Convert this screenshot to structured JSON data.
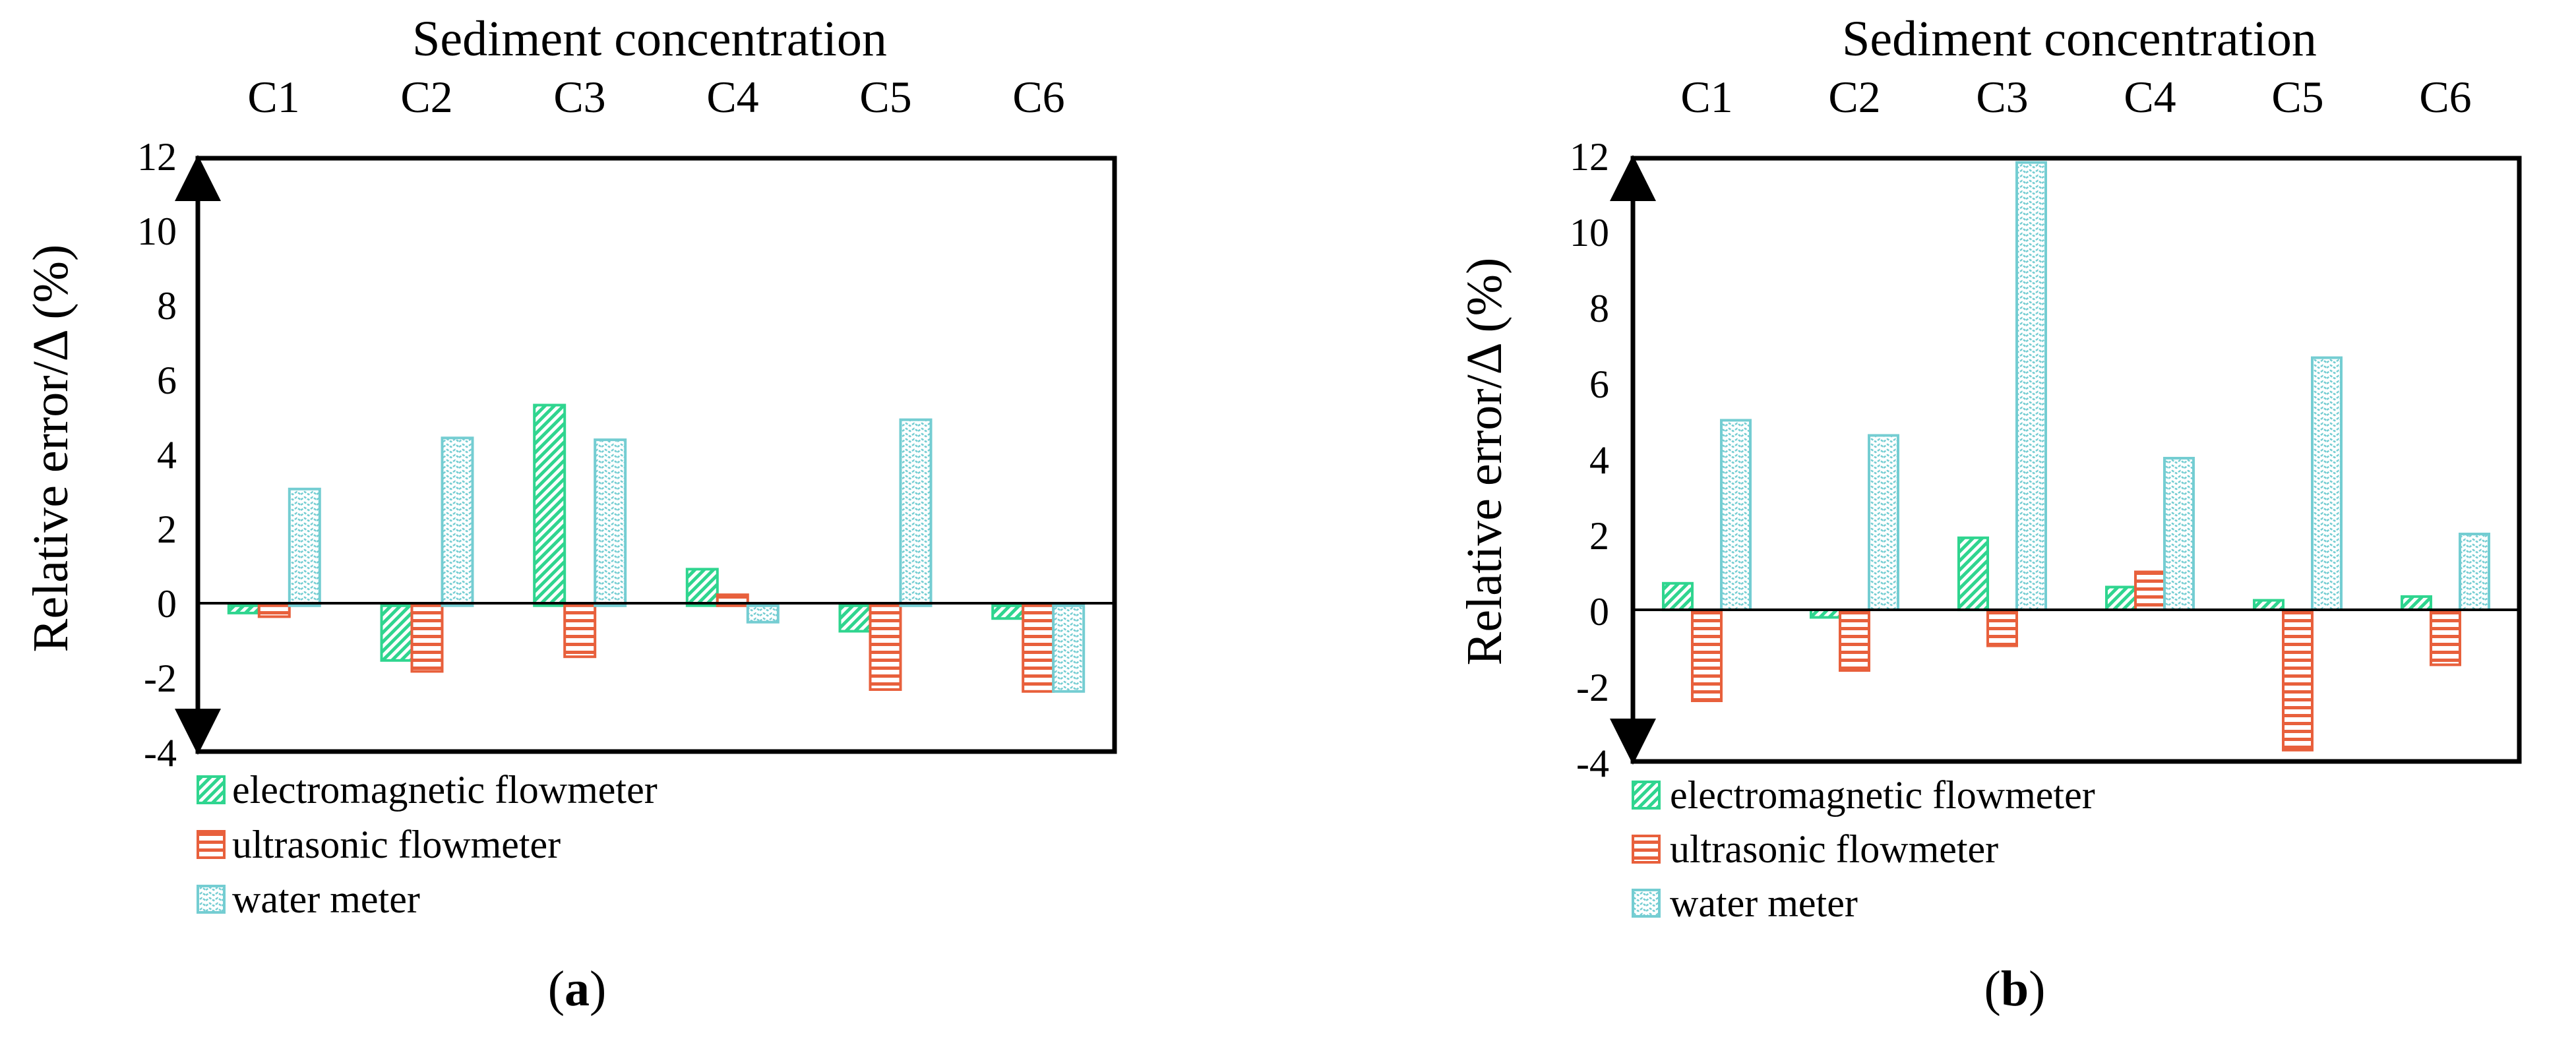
{
  "figure": {
    "series_names": [
      "electromagnetic flowmeter",
      "ultrasonic flowmeter",
      "water meter"
    ],
    "colors": {
      "electromagnetic": "#2fd58f",
      "ultrasonic": "#e8603c",
      "water": "#74cdd2",
      "axis": "#000000"
    }
  },
  "chart_data": [
    {
      "type": "bar",
      "panel": "a",
      "title": "Sediment concentration",
      "xlabel": "",
      "ylabel": "Relative error/Δ (%)",
      "categories": [
        "C1",
        "C2",
        "C3",
        "C4",
        "C5",
        "C6"
      ],
      "yticks": [
        "12",
        "10",
        "8",
        "6",
        "4",
        "2",
        "0",
        "-2",
        "-4"
      ],
      "ylim": [
        -4,
        12
      ],
      "double_arrow_range": [
        -4,
        12
      ],
      "series": [
        {
          "name": "electromagnetic flowmeter",
          "key": "electromagnetic",
          "values": [
            -0.2,
            -1.5,
            5.5,
            1.0,
            -0.7,
            -0.35
          ]
        },
        {
          "name": "ultrasonic flowmeter",
          "key": "ultrasonic",
          "values": [
            -0.3,
            -1.8,
            -1.4,
            0.3,
            -2.3,
            -2.35
          ]
        },
        {
          "name": "water meter",
          "key": "water",
          "values": [
            3.2,
            4.6,
            4.55,
            -0.45,
            5.1,
            -2.35
          ]
        }
      ],
      "legend": "bottom-left",
      "caption_open": "(",
      "caption_letter": "a",
      "caption_close": ")"
    },
    {
      "type": "bar",
      "panel": "b",
      "title": "Sediment concentration",
      "xlabel": "",
      "ylabel": "Relative error/Δ (%)",
      "categories": [
        "C1",
        "C2",
        "C3",
        "C4",
        "C5",
        "C6"
      ],
      "yticks": [
        "12",
        "10",
        "8",
        "6",
        "4",
        "2",
        "0",
        "-2",
        "-4"
      ],
      "ylim": [
        -4,
        12
      ],
      "double_arrow_range": [
        -4,
        12
      ],
      "series": [
        {
          "name": "electromagnetic flowmeter",
          "key": "electromagnetic",
          "values": [
            0.7,
            -0.2,
            1.9,
            0.6,
            0.25,
            0.35
          ]
        },
        {
          "name": "ultrasonic flowmeter",
          "key": "ultrasonic",
          "values": [
            -2.4,
            -1.6,
            -0.95,
            1.0,
            -3.7,
            -1.45
          ]
        },
        {
          "name": "water meter",
          "key": "water",
          "values": [
            5.0,
            4.6,
            11.8,
            4.0,
            6.65,
            2.0
          ]
        }
      ],
      "legend": "bottom-left",
      "caption_open": "(",
      "caption_letter": "b",
      "caption_close": ")"
    }
  ]
}
